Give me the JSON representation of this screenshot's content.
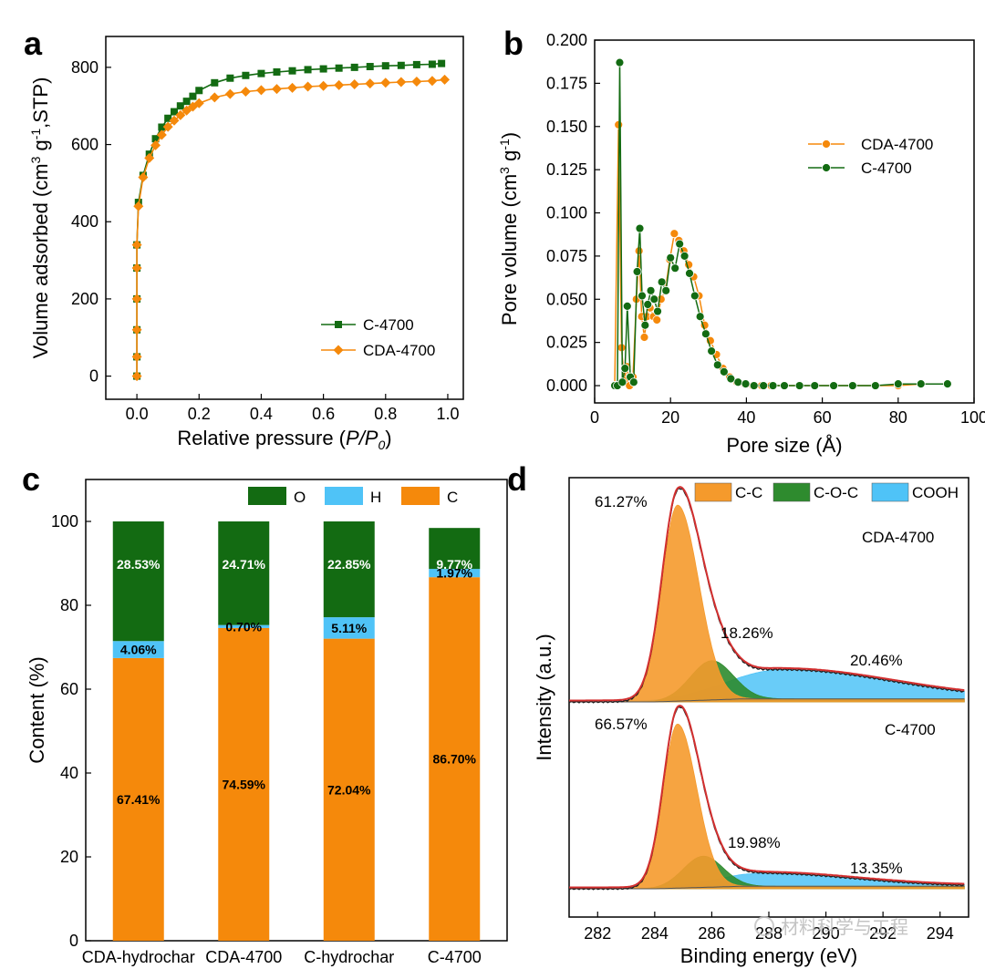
{
  "colors": {
    "orange": "#f5890b",
    "green": "#136b12",
    "lightblue": "#4fc3f7",
    "red": "#d32f2f",
    "cc": "#f59a2c",
    "coc": "#2e8b2e",
    "cooh": "#4fc3f7"
  },
  "watermark": "材料科学与工程",
  "chart_data": [
    {
      "panel": "a",
      "type": "line",
      "xlabel_prefix": "Relative pressure (",
      "xlabel_var": "P/P",
      "xlabel_sub": "0",
      "xlabel_suffix": ")",
      "ylabel_parts": [
        "Volume adsorbed (cm",
        "3",
        " g",
        "-1",
        ",STP)"
      ],
      "xlim": [
        -0.1,
        1.05
      ],
      "ylim": [
        -60,
        880
      ],
      "xticks": [
        0.0,
        0.2,
        0.4,
        0.6,
        0.8,
        1.0
      ],
      "xtick_labels": [
        "0.0",
        "0.2",
        "0.4",
        "0.6",
        "0.8",
        "1.0"
      ],
      "yticks": [
        0,
        200,
        400,
        600,
        800
      ],
      "ytick_labels": [
        "0",
        "200",
        "400",
        "600",
        "800"
      ],
      "legend_position": "bottom-right",
      "series": [
        {
          "name": "C-4700",
          "marker": "square",
          "color": "#136b12",
          "x": [
            0.0,
            0.0,
            0.0,
            0.0,
            0.0,
            0.0,
            0.005,
            0.02,
            0.04,
            0.06,
            0.08,
            0.1,
            0.12,
            0.14,
            0.16,
            0.18,
            0.2,
            0.25,
            0.3,
            0.35,
            0.4,
            0.45,
            0.5,
            0.55,
            0.6,
            0.65,
            0.7,
            0.75,
            0.8,
            0.85,
            0.9,
            0.95,
            0.98
          ],
          "y": [
            0,
            50,
            120,
            200,
            280,
            340,
            450,
            520,
            575,
            615,
            645,
            668,
            685,
            700,
            712,
            725,
            740,
            760,
            772,
            779,
            784,
            788,
            791,
            794,
            796,
            798,
            800,
            802,
            804,
            805,
            807,
            808,
            810
          ]
        },
        {
          "name": "CDA-4700",
          "marker": "diamond",
          "color": "#f5890b",
          "x": [
            0.0,
            0.0,
            0.0,
            0.0,
            0.0,
            0.0,
            0.005,
            0.02,
            0.04,
            0.06,
            0.08,
            0.1,
            0.12,
            0.14,
            0.16,
            0.18,
            0.2,
            0.25,
            0.3,
            0.35,
            0.4,
            0.45,
            0.5,
            0.55,
            0.6,
            0.65,
            0.7,
            0.75,
            0.8,
            0.85,
            0.9,
            0.95,
            0.99
          ],
          "y": [
            0,
            50,
            120,
            200,
            280,
            340,
            440,
            515,
            565,
            598,
            625,
            646,
            662,
            676,
            688,
            698,
            707,
            722,
            731,
            737,
            741,
            744,
            747,
            750,
            752,
            754,
            756,
            758,
            760,
            762,
            763,
            765,
            768
          ]
        }
      ]
    },
    {
      "panel": "b",
      "type": "line",
      "xlabel": "Pore size (Å)",
      "ylabel_parts": [
        "Pore volume (cm",
        "3",
        " g",
        "-1",
        ")"
      ],
      "xlim": [
        0,
        100
      ],
      "ylim": [
        -0.01,
        0.2
      ],
      "xticks": [
        0,
        20,
        40,
        60,
        80,
        100
      ],
      "xtick_labels": [
        "0",
        "20",
        "40",
        "60",
        "80",
        "100"
      ],
      "yticks": [
        0.0,
        0.025,
        0.05,
        0.075,
        0.1,
        0.125,
        0.15,
        0.175,
        0.2
      ],
      "ytick_labels": [
        "0.000",
        "0.025",
        "0.050",
        "0.075",
        "0.100",
        "0.125",
        "0.150",
        "0.175",
        "0.200"
      ],
      "legend_position": "top-right",
      "series": [
        {
          "name": "CDA-4700",
          "marker": "circle",
          "color": "#f5890b",
          "x": [
            5.3,
            6.3,
            7.1,
            7.8,
            8.5,
            9.2,
            10.1,
            11.0,
            11.7,
            12.4,
            13.1,
            13.8,
            14.6,
            15.5,
            16.4,
            17.5,
            18.6,
            19.8,
            21.0,
            22.2,
            23.5,
            24.8,
            26.1,
            27.5,
            29.0,
            30.5,
            32.1,
            33.8,
            35.6,
            37.5,
            39.5,
            41.7,
            44.0,
            46.5,
            50.0,
            54.0,
            58.0,
            63.0,
            68.0,
            74.0,
            80.0,
            86.0,
            93.0
          ],
          "y": [
            0.0,
            0.151,
            0.022,
            0.003,
            0.011,
            0.0,
            0.005,
            0.05,
            0.078,
            0.04,
            0.028,
            0.04,
            0.045,
            0.04,
            0.038,
            0.05,
            0.055,
            0.073,
            0.088,
            0.084,
            0.078,
            0.07,
            0.063,
            0.052,
            0.035,
            0.026,
            0.018,
            0.01,
            0.005,
            0.002,
            0.001,
            0.0,
            0.0,
            0.0,
            0.0,
            0.0,
            0.0,
            0.0,
            0.0,
            0.0,
            0.0,
            0.001,
            0.001
          ]
        },
        {
          "name": "C-4700",
          "marker": "circle",
          "color": "#136b12",
          "x": [
            5.3,
            6.0,
            6.6,
            7.3,
            8.0,
            8.6,
            9.4,
            10.3,
            11.2,
            11.9,
            12.5,
            13.3,
            14.0,
            14.8,
            15.7,
            16.6,
            17.7,
            18.8,
            20.0,
            21.2,
            22.4,
            23.7,
            25.0,
            26.4,
            27.8,
            29.3,
            30.8,
            32.4,
            34.1,
            35.9,
            37.8,
            39.8,
            42.0,
            44.5,
            47.0,
            50.0,
            54.0,
            58.0,
            63.0,
            68.0,
            74.0,
            80.0,
            86.0,
            93.0
          ],
          "y": [
            0.0,
            0.0,
            0.187,
            0.002,
            0.01,
            0.046,
            0.005,
            0.002,
            0.066,
            0.091,
            0.052,
            0.035,
            0.047,
            0.055,
            0.05,
            0.043,
            0.06,
            0.055,
            0.074,
            0.068,
            0.082,
            0.075,
            0.065,
            0.052,
            0.04,
            0.03,
            0.02,
            0.012,
            0.008,
            0.004,
            0.002,
            0.001,
            0.0,
            0.0,
            0.0,
            0.0,
            0.0,
            0.0,
            0.0,
            0.0,
            0.0,
            0.001,
            0.001,
            0.001
          ]
        }
      ]
    },
    {
      "panel": "c",
      "type": "bar",
      "stacked": true,
      "ylabel": "Content (%)",
      "ylim": [
        0,
        110
      ],
      "yticks": [
        0,
        20,
        40,
        60,
        80,
        100
      ],
      "ytick_labels": [
        "0",
        "20",
        "40",
        "60",
        "80",
        "100"
      ],
      "categories": [
        "CDA-hydrochar",
        "CDA-4700",
        "C-hydrochar",
        "C-4700"
      ],
      "legend_position": "top-right",
      "series": [
        {
          "name": "C",
          "color": "#f5890b",
          "values": [
            67.41,
            74.59,
            72.04,
            86.7
          ],
          "labels": [
            "67.41%",
            "74.59%",
            "72.04%",
            "86.70%"
          ]
        },
        {
          "name": "H",
          "color": "#4fc3f7",
          "values": [
            4.06,
            0.7,
            5.11,
            1.97
          ],
          "labels": [
            "4.06%",
            "0.70%",
            "5.11%",
            "1.97%"
          ]
        },
        {
          "name": "O",
          "color": "#136b12",
          "values": [
            28.53,
            24.71,
            22.85,
            9.77
          ],
          "labels": [
            "28.53%",
            "24.71%",
            "22.85%",
            "9.77%"
          ]
        }
      ]
    },
    {
      "panel": "d",
      "type": "area",
      "xlabel": "Binding energy (eV)",
      "ylabel": "Intensity (a.u.)",
      "xlim": [
        281,
        295
      ],
      "xticks": [
        282,
        284,
        286,
        288,
        290,
        292,
        294
      ],
      "xtick_labels": [
        "282",
        "284",
        "286",
        "288",
        "290",
        "292",
        "294"
      ],
      "legend_position": "top",
      "components": [
        "C-C",
        "C-O-C",
        "COOH"
      ],
      "samples": [
        {
          "name": "CDA-4700",
          "percentages": {
            "C-C": "61.27%",
            "C-O-C": "18.26%",
            "COOH": "20.46%"
          },
          "peaks": {
            "C-C": {
              "center": 284.8,
              "height": 1.0,
              "width": 0.55
            },
            "C-O-C": {
              "center": 286.0,
              "height": 0.2,
              "width": 0.75
            },
            "COOH": {
              "center": 288.5,
              "height": 0.15,
              "width": 2.4
            }
          }
        },
        {
          "name": "C-4700",
          "percentages": {
            "C-C": "66.57%",
            "C-O-C": "19.98%",
            "COOH": "13.35%"
          },
          "peaks": {
            "C-C": {
              "center": 284.8,
              "height": 1.0,
              "width": 0.5
            },
            "C-O-C": {
              "center": 285.7,
              "height": 0.19,
              "width": 0.7
            },
            "COOH": {
              "center": 287.8,
              "height": 0.08,
              "width": 2.0
            }
          }
        }
      ]
    }
  ],
  "panel_labels": [
    "a",
    "b",
    "c",
    "d"
  ]
}
